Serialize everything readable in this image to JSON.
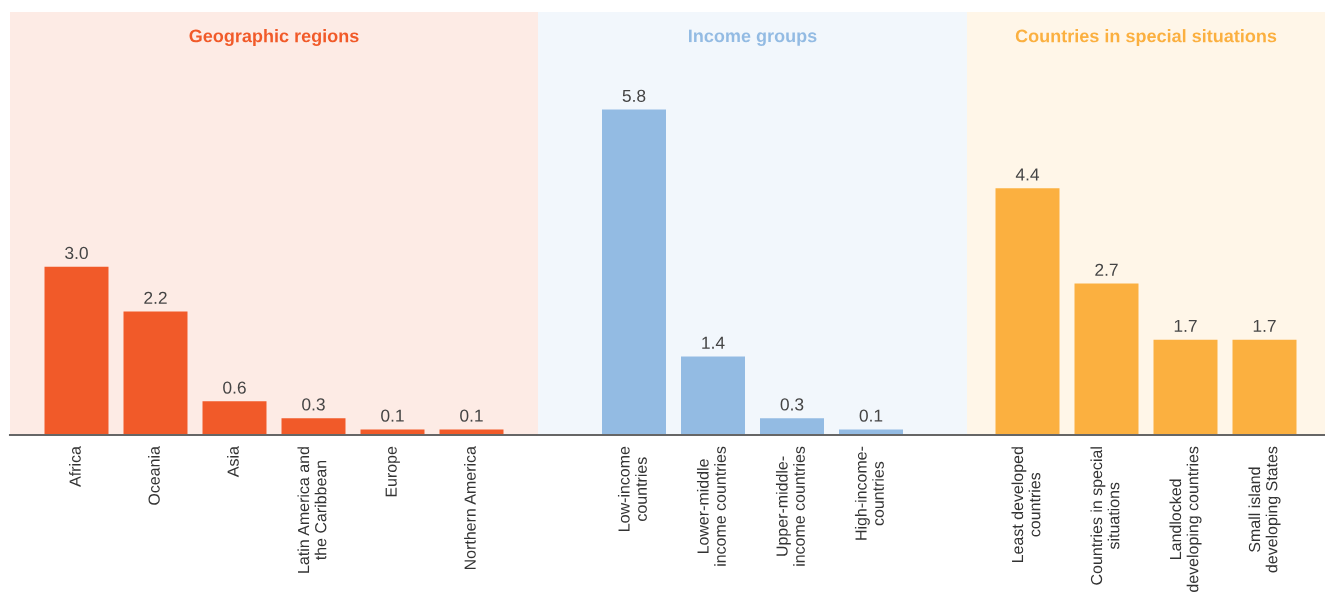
{
  "chart_data": [
    {
      "type": "bar",
      "title": "Geographic regions",
      "categories": [
        "Africa",
        "Oceania",
        "Asia",
        "Latin America and\nthe Caribbean",
        "Europe",
        "Northern America"
      ],
      "values": [
        3.0,
        2.2,
        0.6,
        0.3,
        0.1,
        0.1
      ],
      "value_labels": [
        "3.0",
        "2.2",
        "0.6",
        "0.3",
        "0.1",
        "0.1"
      ],
      "color": "#f15a29"
    },
    {
      "type": "bar",
      "title": "Income groups",
      "categories": [
        "Low-income\ncountries",
        "Lower-middle\nincome countries",
        "Upper-middle-\nincome countries",
        "High-income-\ncountries"
      ],
      "values": [
        5.8,
        1.4,
        0.3,
        0.1
      ],
      "color": "#93bbe3",
      "data_labels": true
    },
    {
      "type": "bar",
      "title": "Countries in special situations",
      "categories": [
        "Least developed\ncountries",
        "Countries in special\nsituations",
        "Landlocked\ndeveloping countries",
        "Small island\ndeveloping States"
      ],
      "values": [
        4.4,
        2.7,
        1.7,
        1.7
      ],
      "color": "#fbb040",
      "data_labels": true
    }
  ]
}
